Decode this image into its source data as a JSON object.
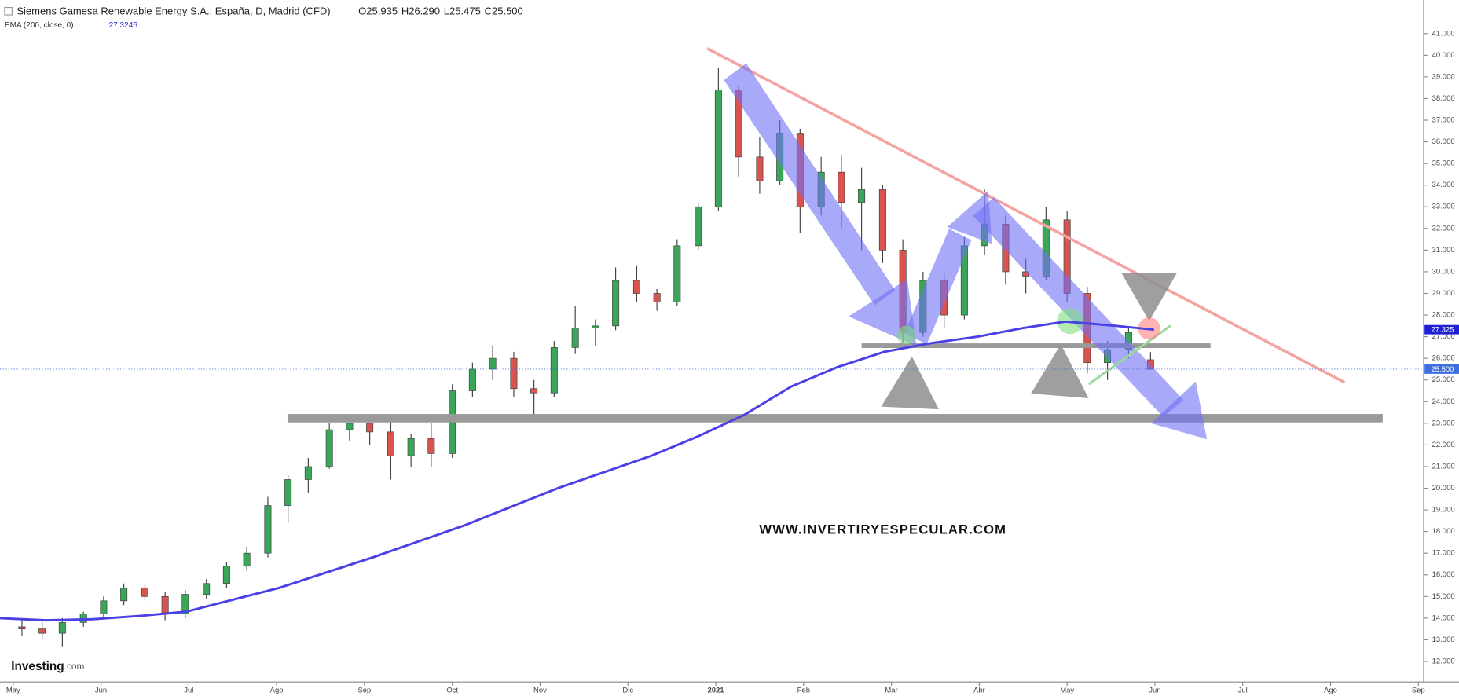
{
  "chart_data": {
    "type": "candlestick",
    "title": "Siemens Gamesa Renewable Energy S.A., España, D, Madrid (CFD)",
    "title_ohlc": [
      "O25.935",
      "H26.290",
      "L25.475",
      "C25.500"
    ],
    "indicator_label": "EMA (200, close, 0)",
    "indicator_value_label": "27.3246",
    "watermark": "WWW.INVERTIRYESPECULAR.COM",
    "logo": [
      "Investing",
      ".com"
    ],
    "up_color": "#3aa657",
    "down_color": "#d9534f",
    "x": [
      0.1,
      0.33,
      0.56,
      0.8,
      1.03,
      1.26,
      1.5,
      1.73,
      1.96,
      2.2,
      2.43,
      2.66,
      2.9,
      3.13,
      3.36,
      3.6,
      3.83,
      4.06,
      4.3,
      4.53,
      4.76,
      5.0,
      5.23,
      5.46,
      5.7,
      5.93,
      6.16,
      6.4,
      6.63,
      6.86,
      7.1,
      7.33,
      7.56,
      7.8,
      8.03,
      8.26,
      8.5,
      8.73,
      8.96,
      9.2,
      9.43,
      9.66,
      9.9,
      10.13,
      10.36,
      10.6,
      10.83,
      11.06,
      11.3,
      11.53,
      11.76,
      12.0,
      12.23,
      12.46,
      12.7,
      12.95
    ],
    "open": [
      13.6,
      13.5,
      13.3,
      13.8,
      14.2,
      14.8,
      15.4,
      15.0,
      14.2,
      15.1,
      15.6,
      16.4,
      17.0,
      19.2,
      20.4,
      21.0,
      22.7,
      23.0,
      22.6,
      21.5,
      22.3,
      21.6,
      24.5,
      25.5,
      26.0,
      24.6,
      24.4,
      26.5,
      27.4,
      27.5,
      29.6,
      29.0,
      28.6,
      31.2,
      33.0,
      38.4,
      35.3,
      34.2,
      36.4,
      33.0,
      34.6,
      33.2,
      33.8,
      31.0,
      27.2,
      29.6,
      28.0,
      31.2,
      32.2,
      30.0,
      29.8,
      32.4,
      29.0,
      25.8,
      26.4,
      25.935
    ],
    "high": [
      14.0,
      13.9,
      14.0,
      14.3,
      15.0,
      15.6,
      15.6,
      15.2,
      15.3,
      15.8,
      16.6,
      17.3,
      19.6,
      20.6,
      21.4,
      23.0,
      23.4,
      23.4,
      23.3,
      22.5,
      23.0,
      24.8,
      25.8,
      26.6,
      26.3,
      25.0,
      26.8,
      28.4,
      27.8,
      30.2,
      30.3,
      29.2,
      31.5,
      33.2,
      39.4,
      38.6,
      36.2,
      37.0,
      36.6,
      35.3,
      35.4,
      34.8,
      34.0,
      31.5,
      30.0,
      29.9,
      31.6,
      33.8,
      32.6,
      30.6,
      33.0,
      32.8,
      29.3,
      26.8,
      27.4,
      26.29
    ],
    "low": [
      13.2,
      13.0,
      12.7,
      13.6,
      14.0,
      14.6,
      14.8,
      13.9,
      14.0,
      14.9,
      15.4,
      16.2,
      16.8,
      18.4,
      19.8,
      20.9,
      22.2,
      22.0,
      20.4,
      21.0,
      21.0,
      21.4,
      24.2,
      25.0,
      24.2,
      23.3,
      24.2,
      26.2,
      26.6,
      27.3,
      28.6,
      28.2,
      28.4,
      31.0,
      32.8,
      34.4,
      33.6,
      34.0,
      31.8,
      32.6,
      32.0,
      31.0,
      30.4,
      26.6,
      27.0,
      27.4,
      27.8,
      30.8,
      29.4,
      29.0,
      29.6,
      28.6,
      25.3,
      25.0,
      26.0,
      25.475
    ],
    "close": [
      13.5,
      13.3,
      13.8,
      14.2,
      14.8,
      15.4,
      15.0,
      14.2,
      15.1,
      15.6,
      16.4,
      17.0,
      19.2,
      20.4,
      21.0,
      22.7,
      23.0,
      22.6,
      21.5,
      22.3,
      21.6,
      24.5,
      25.5,
      26.0,
      24.6,
      24.4,
      26.5,
      27.4,
      27.5,
      29.6,
      29.0,
      28.6,
      31.2,
      33.0,
      38.4,
      35.3,
      34.2,
      36.4,
      33.0,
      34.6,
      33.2,
      33.8,
      31.0,
      27.2,
      29.6,
      28.0,
      31.2,
      32.2,
      30.0,
      29.8,
      32.4,
      29.0,
      25.8,
      26.4,
      27.2,
      25.5
    ],
    "ema": {
      "name": "EMA (200, close, 0)",
      "color": "#4b3fe6",
      "x": [
        -0.15,
        0.38,
        0.91,
        1.44,
        1.97,
        3.03,
        4.09,
        5.15,
        6.2,
        7.27,
        7.8,
        8.33,
        8.86,
        9.39,
        9.92,
        10.45,
        10.98,
        11.5,
        11.98,
        12.56,
        12.99
      ],
      "values": [
        14.0,
        13.9,
        13.95,
        14.1,
        14.3,
        15.4,
        16.8,
        18.3,
        20.0,
        21.5,
        22.4,
        23.4,
        24.7,
        25.6,
        26.3,
        26.7,
        27.0,
        27.4,
        27.7,
        27.5,
        27.325
      ]
    },
    "ema_tag": {
      "value": 27.325,
      "label": "27.325",
      "color": "#1f1fd6"
    },
    "price_tag": {
      "value": 25.5,
      "label": "25.500",
      "color": "#3b6fe0"
    },
    "xlim": [
      -0.15,
      16.06
    ],
    "xticks": [
      {
        "value": 0,
        "label": "May"
      },
      {
        "value": 1,
        "label": "Jun"
      },
      {
        "value": 2,
        "label": "Jul"
      },
      {
        "value": 3,
        "label": "Ago"
      },
      {
        "value": 4,
        "label": "Sep"
      },
      {
        "value": 5,
        "label": "Oct"
      },
      {
        "value": 6,
        "label": "Nov"
      },
      {
        "value": 7,
        "label": "Dic"
      },
      {
        "value": 8,
        "label": "2021"
      },
      {
        "value": 9,
        "label": "Feb"
      },
      {
        "value": 10,
        "label": "Mar"
      },
      {
        "value": 11,
        "label": "Abr"
      },
      {
        "value": 12,
        "label": "May"
      },
      {
        "value": 13,
        "label": "Jun"
      },
      {
        "value": 14,
        "label": "Jul"
      },
      {
        "value": 15,
        "label": "Ago"
      },
      {
        "value": 16,
        "label": "Sep"
      }
    ],
    "ylim": [
      11.05,
      42.55
    ],
    "yticks": [
      {
        "value": 12,
        "label": "12.000"
      },
      {
        "value": 13,
        "label": "13.000"
      },
      {
        "value": 14,
        "label": "14.000"
      },
      {
        "value": 15,
        "label": "15.000"
      },
      {
        "value": 16,
        "label": "16.000"
      },
      {
        "value": 17,
        "label": "17.000"
      },
      {
        "value": 18,
        "label": "18.000"
      },
      {
        "value": 19,
        "label": "19.000"
      },
      {
        "value": 20,
        "label": "20.000"
      },
      {
        "value": 21,
        "label": "21.000"
      },
      {
        "value": 22,
        "label": "22.000"
      },
      {
        "value": 23,
        "label": "23.000"
      },
      {
        "value": 24,
        "label": "24.000"
      },
      {
        "value": 25,
        "label": "25.000"
      },
      {
        "value": 26,
        "label": "26.000"
      },
      {
        "value": 27,
        "label": "27.000"
      },
      {
        "value": 28,
        "label": "28.000"
      },
      {
        "value": 29,
        "label": "29.000"
      },
      {
        "value": 30,
        "label": "30.000"
      },
      {
        "value": 31,
        "label": "31.000"
      },
      {
        "value": 32,
        "label": "32.000"
      },
      {
        "value": 33,
        "label": "33.000"
      },
      {
        "value": 34,
        "label": "34.000"
      },
      {
        "value": 35,
        "label": "35.000"
      },
      {
        "value": 36,
        "label": "36.000"
      },
      {
        "value": 37,
        "label": "37.000"
      },
      {
        "value": 38,
        "label": "38.000"
      },
      {
        "value": 39,
        "label": "39.000"
      },
      {
        "value": 40,
        "label": "40.000"
      },
      {
        "value": 41,
        "label": "41.000"
      }
    ]
  }
}
